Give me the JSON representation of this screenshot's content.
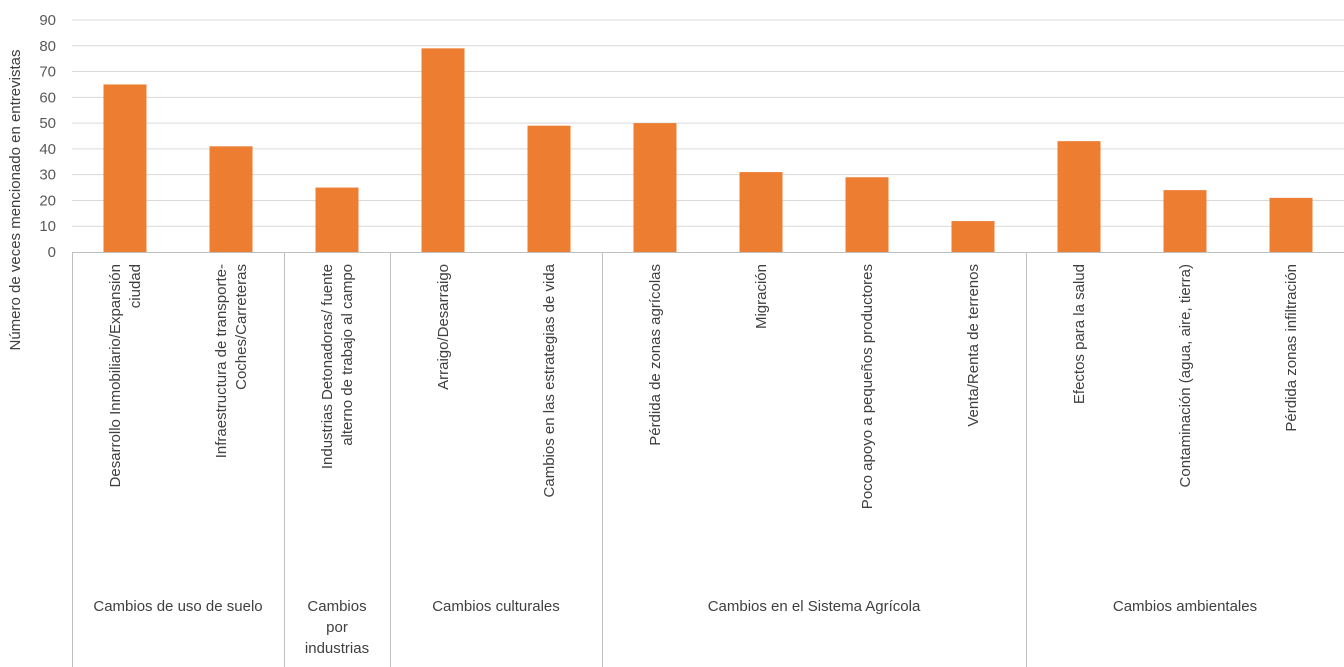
{
  "colors": {
    "bar": "#ED7D31",
    "grid": "#D9D9D9",
    "axis": "#BFBFBF",
    "text": "#404040"
  },
  "chart_data": {
    "type": "bar",
    "ylabel": "Número de veces mencionado en entrevistas",
    "ylim": [
      0,
      90
    ],
    "yticks": [
      0,
      10,
      20,
      30,
      40,
      50,
      60,
      70,
      80,
      90
    ],
    "grid": true,
    "legend": "none",
    "categories": [
      {
        "lines": [
          "Desarrollo Inmobiliario/Expansión",
          "ciudad"
        ]
      },
      {
        "lines": [
          "Infraestructura de transporte-",
          "Coches/Carreteras"
        ]
      },
      {
        "lines": [
          "Industrias Detonadoras/ fuente",
          "alterno de trabajo al campo"
        ]
      },
      {
        "lines": [
          "Arraigo/Desarraigo"
        ]
      },
      {
        "lines": [
          "Cambios en las estrategias de vida"
        ]
      },
      {
        "lines": [
          "Pérdida de zonas agrícolas"
        ]
      },
      {
        "lines": [
          "Migración"
        ]
      },
      {
        "lines": [
          "Poco apoyo a pequeños productores"
        ]
      },
      {
        "lines": [
          "Venta/Renta de terrenos"
        ]
      },
      {
        "lines": [
          "Efectos para la salud"
        ]
      },
      {
        "lines": [
          "Contaminación (agua, aire, tierra)"
        ]
      },
      {
        "lines": [
          "Pérdida zonas infiltración"
        ]
      }
    ],
    "values": [
      65,
      41,
      25,
      79,
      49,
      50,
      31,
      29,
      12,
      43,
      24,
      21
    ],
    "groups": [
      {
        "lines": [
          "Cambios de uso de suelo"
        ],
        "count": 2
      },
      {
        "lines": [
          "Cambios",
          "por",
          "industrias"
        ],
        "count": 1
      },
      {
        "lines": [
          "Cambios culturales"
        ],
        "count": 2
      },
      {
        "lines": [
          "Cambios en el Sistema Agrícola"
        ],
        "count": 4
      },
      {
        "lines": [
          "Cambios ambientales"
        ],
        "count": 3
      }
    ]
  }
}
